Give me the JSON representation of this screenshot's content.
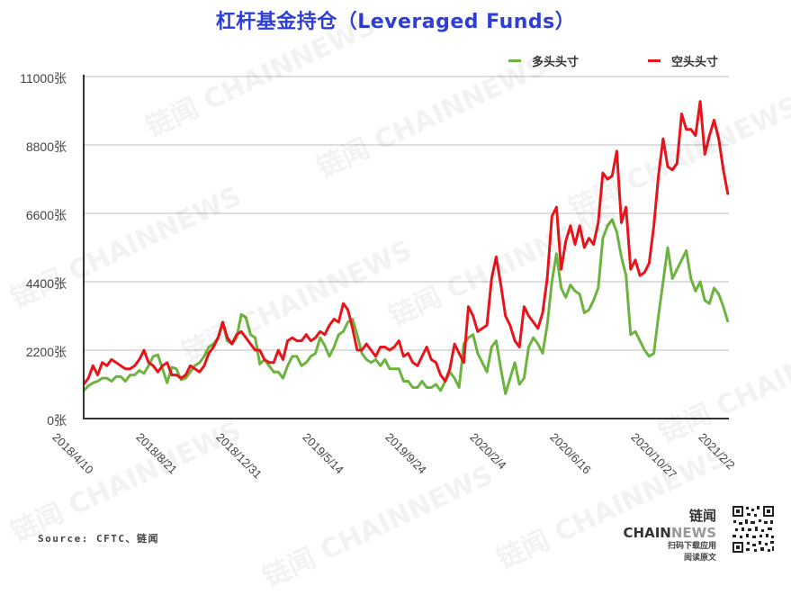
{
  "title": "杠杆基金持仓（Leveraged Funds）",
  "legend": {
    "long": {
      "label": "多头头寸",
      "color": "#6db33f"
    },
    "short": {
      "label": "空头头寸",
      "color": "#e8141b"
    }
  },
  "source": "Source: CFTC、链闻",
  "brand": {
    "name_a": "链闻 CHAIN",
    "name_b": "NEWS",
    "line1": "扫码下载应用",
    "line2": "阅读原文"
  },
  "watermark": "链闻 CHAINNEWS",
  "chart_data": {
    "type": "line",
    "title": "杠杆基金持仓（Leveraged Funds）",
    "xlabel": "",
    "ylabel": "",
    "ylim": [
      0,
      11000
    ],
    "y_ticks": [
      "0张",
      "2200张",
      "4400张",
      "6600张",
      "8800张",
      "11000张"
    ],
    "x_ticks": [
      "2018/4/10",
      "2018/8/21",
      "2018/12/31",
      "2019/5/14",
      "2019/9/24",
      "2020/2/4",
      "2020/6/16",
      "2020/10/27",
      "2021/2/2"
    ],
    "grid": "horizontal",
    "legend_position": "top-right",
    "series": [
      {
        "name": "多头头寸",
        "color": "#6db33f",
        "values": [
          900,
          1050,
          1150,
          1200,
          1300,
          1300,
          1200,
          1350,
          1350,
          1200,
          1400,
          1400,
          1550,
          1450,
          1700,
          2000,
          2050,
          1600,
          1150,
          1650,
          1600,
          1250,
          1300,
          1500,
          1700,
          1800,
          2000,
          2300,
          2400,
          2600,
          3100,
          2500,
          2400,
          2600,
          3350,
          3250,
          2700,
          2600,
          1750,
          1900,
          1700,
          1500,
          1500,
          1300,
          1700,
          2000,
          2000,
          1700,
          1800,
          2000,
          2100,
          2600,
          2350,
          2000,
          2300,
          2700,
          2800,
          3100,
          3200,
          2700,
          2100,
          1900,
          1800,
          1900,
          1700,
          1900,
          1600,
          1600,
          1600,
          1200,
          1200,
          1000,
          1000,
          1200,
          1000,
          1000,
          1100,
          900,
          1200,
          1500,
          1300,
          1000,
          2400,
          2600,
          2700,
          2100,
          1800,
          1500,
          2300,
          2500,
          1600,
          800,
          1300,
          1800,
          1100,
          1300,
          2300,
          2600,
          2400,
          2100,
          3000,
          4400,
          5300,
          4200,
          3900,
          4300,
          4100,
          4000,
          3400,
          3500,
          3800,
          4200,
          5800,
          6200,
          6400,
          6000,
          5200,
          4600,
          2700,
          2800,
          2500,
          2200,
          2000,
          2100,
          3300,
          4400,
          5500,
          4500,
          4800,
          5100,
          5400,
          4500,
          4100,
          4400,
          3800,
          3700,
          4200,
          4000,
          3600,
          3100
        ]
      },
      {
        "name": "空头头寸",
        "color": "#e8141b",
        "values": [
          1100,
          1300,
          1700,
          1400,
          1800,
          1700,
          1900,
          1800,
          1700,
          1600,
          1600,
          1700,
          1900,
          2200,
          1800,
          1700,
          1500,
          1700,
          1800,
          1400,
          1400,
          1300,
          1400,
          1700,
          1600,
          1500,
          1700,
          2100,
          2300,
          2600,
          3100,
          2600,
          2400,
          2700,
          2800,
          2600,
          2400,
          2200,
          2200,
          1900,
          1800,
          1800,
          2200,
          1900,
          2500,
          2600,
          2500,
          2500,
          2700,
          2500,
          2600,
          2800,
          2700,
          3000,
          3200,
          3100,
          3700,
          3500,
          2900,
          2200,
          2200,
          2400,
          2200,
          2000,
          2300,
          2300,
          2200,
          2300,
          2500,
          2000,
          2100,
          1800,
          1700,
          2000,
          2300,
          1900,
          1800,
          1400,
          1200,
          1600,
          2400,
          2100,
          1800,
          3600,
          3300,
          2800,
          2900,
          3000,
          4500,
          5200,
          4300,
          3300,
          3000,
          2500,
          2300,
          3600,
          3300,
          3100,
          2900,
          3400,
          4500,
          6500,
          6800,
          4800,
          5700,
          6200,
          5600,
          6200,
          5500,
          5800,
          5600,
          6300,
          7900,
          7700,
          7800,
          8600,
          6300,
          6800,
          4800,
          5100,
          4600,
          4700,
          5000,
          6200,
          7800,
          9000,
          8100,
          8000,
          8200,
          9800,
          9300,
          9300,
          9100,
          10200,
          8500,
          9100,
          9600,
          9000,
          8000,
          7200
        ]
      }
    ]
  }
}
